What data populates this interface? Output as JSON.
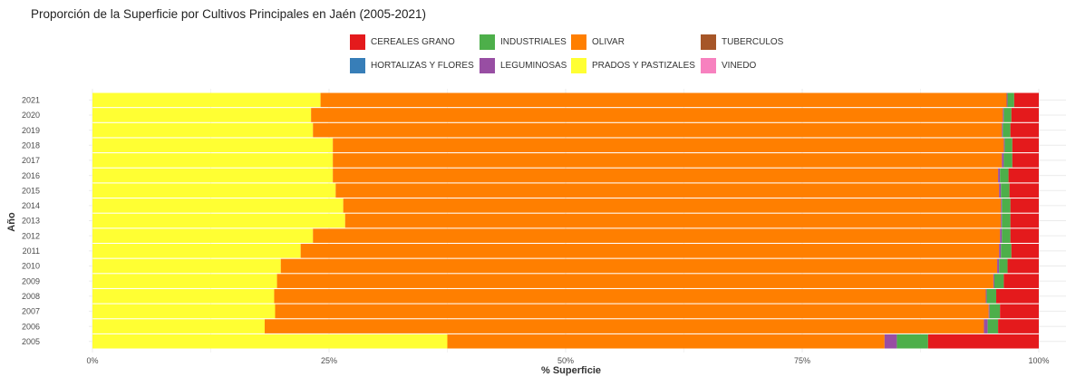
{
  "chart_data": {
    "type": "bar",
    "orientation": "horizontal",
    "stacked": "percent",
    "title": "Proporción de la Superficie por Cultivos Principales en Jaén (2005-2021)",
    "xlabel": "% Superficie",
    "ylabel": "Año",
    "xlim": [
      0,
      100
    ],
    "x_ticks": [
      "0%",
      "25%",
      "50%",
      "75%",
      "100%"
    ],
    "grid": true,
    "legend_position": "top",
    "categories": [
      "2005",
      "2006",
      "2007",
      "2008",
      "2009",
      "2010",
      "2011",
      "2012",
      "2013",
      "2014",
      "2015",
      "2016",
      "2017",
      "2018",
      "2019",
      "2020",
      "2021"
    ],
    "stack_order": [
      "PRADOS Y PASTIZALES",
      "OLIVAR",
      "LEGUMINOSAS",
      "INDUSTRIALES",
      "CEREALES GRANO"
    ],
    "series": [
      {
        "name": "PRADOS Y PASTIZALES",
        "color": "#FFFF33",
        "values": [
          37.5,
          18.2,
          19.3,
          19.2,
          19.5,
          19.9,
          22.0,
          23.3,
          26.7,
          26.5,
          25.7,
          25.4,
          25.4,
          25.4,
          23.3,
          23.1,
          24.1
        ]
      },
      {
        "name": "OLIVAR",
        "color": "#FF7F00",
        "values": [
          46.2,
          76.0,
          75.4,
          75.2,
          75.7,
          75.7,
          73.8,
          72.6,
          69.3,
          69.5,
          70.1,
          70.3,
          70.7,
          70.9,
          72.8,
          73.1,
          72.5
        ]
      },
      {
        "name": "LEGUMINOSAS",
        "color": "#984EA3",
        "values": [
          1.3,
          0.4,
          0.1,
          0.1,
          0.1,
          0.2,
          0.2,
          0.2,
          0.1,
          0.1,
          0.2,
          0.2,
          0.2,
          0.1,
          0.1,
          0.1,
          0.1
        ]
      },
      {
        "name": "INDUSTRIALES",
        "color": "#4DAF4A",
        "values": [
          3.3,
          1.1,
          1.1,
          1.0,
          1.0,
          0.9,
          1.1,
          0.9,
          0.9,
          0.9,
          0.9,
          0.9,
          0.9,
          0.8,
          0.8,
          0.8,
          0.7
        ]
      },
      {
        "name": "CEREALES GRANO",
        "color": "#E41A1C",
        "values": [
          11.7,
          4.3,
          4.1,
          4.5,
          3.7,
          3.3,
          2.9,
          3.0,
          3.0,
          3.0,
          3.1,
          3.2,
          2.8,
          2.8,
          3.0,
          2.9,
          2.6
        ]
      }
    ]
  },
  "legend": [
    {
      "label": "CEREALES GRANO",
      "color": "#E41A1C"
    },
    {
      "label": "INDUSTRIALES",
      "color": "#4DAF4A"
    },
    {
      "label": "OLIVAR",
      "color": "#FF7F00"
    },
    {
      "label": "TUBERCULOS",
      "color": "#A65628"
    },
    {
      "label": "HORTALIZAS Y FLORES",
      "color": "#377EB8"
    },
    {
      "label": "LEGUMINOSAS",
      "color": "#984EA3"
    },
    {
      "label": "PRADOS Y PASTIZALES",
      "color": "#FFFF33"
    },
    {
      "label": "VINEDO",
      "color": "#F781BF"
    }
  ]
}
